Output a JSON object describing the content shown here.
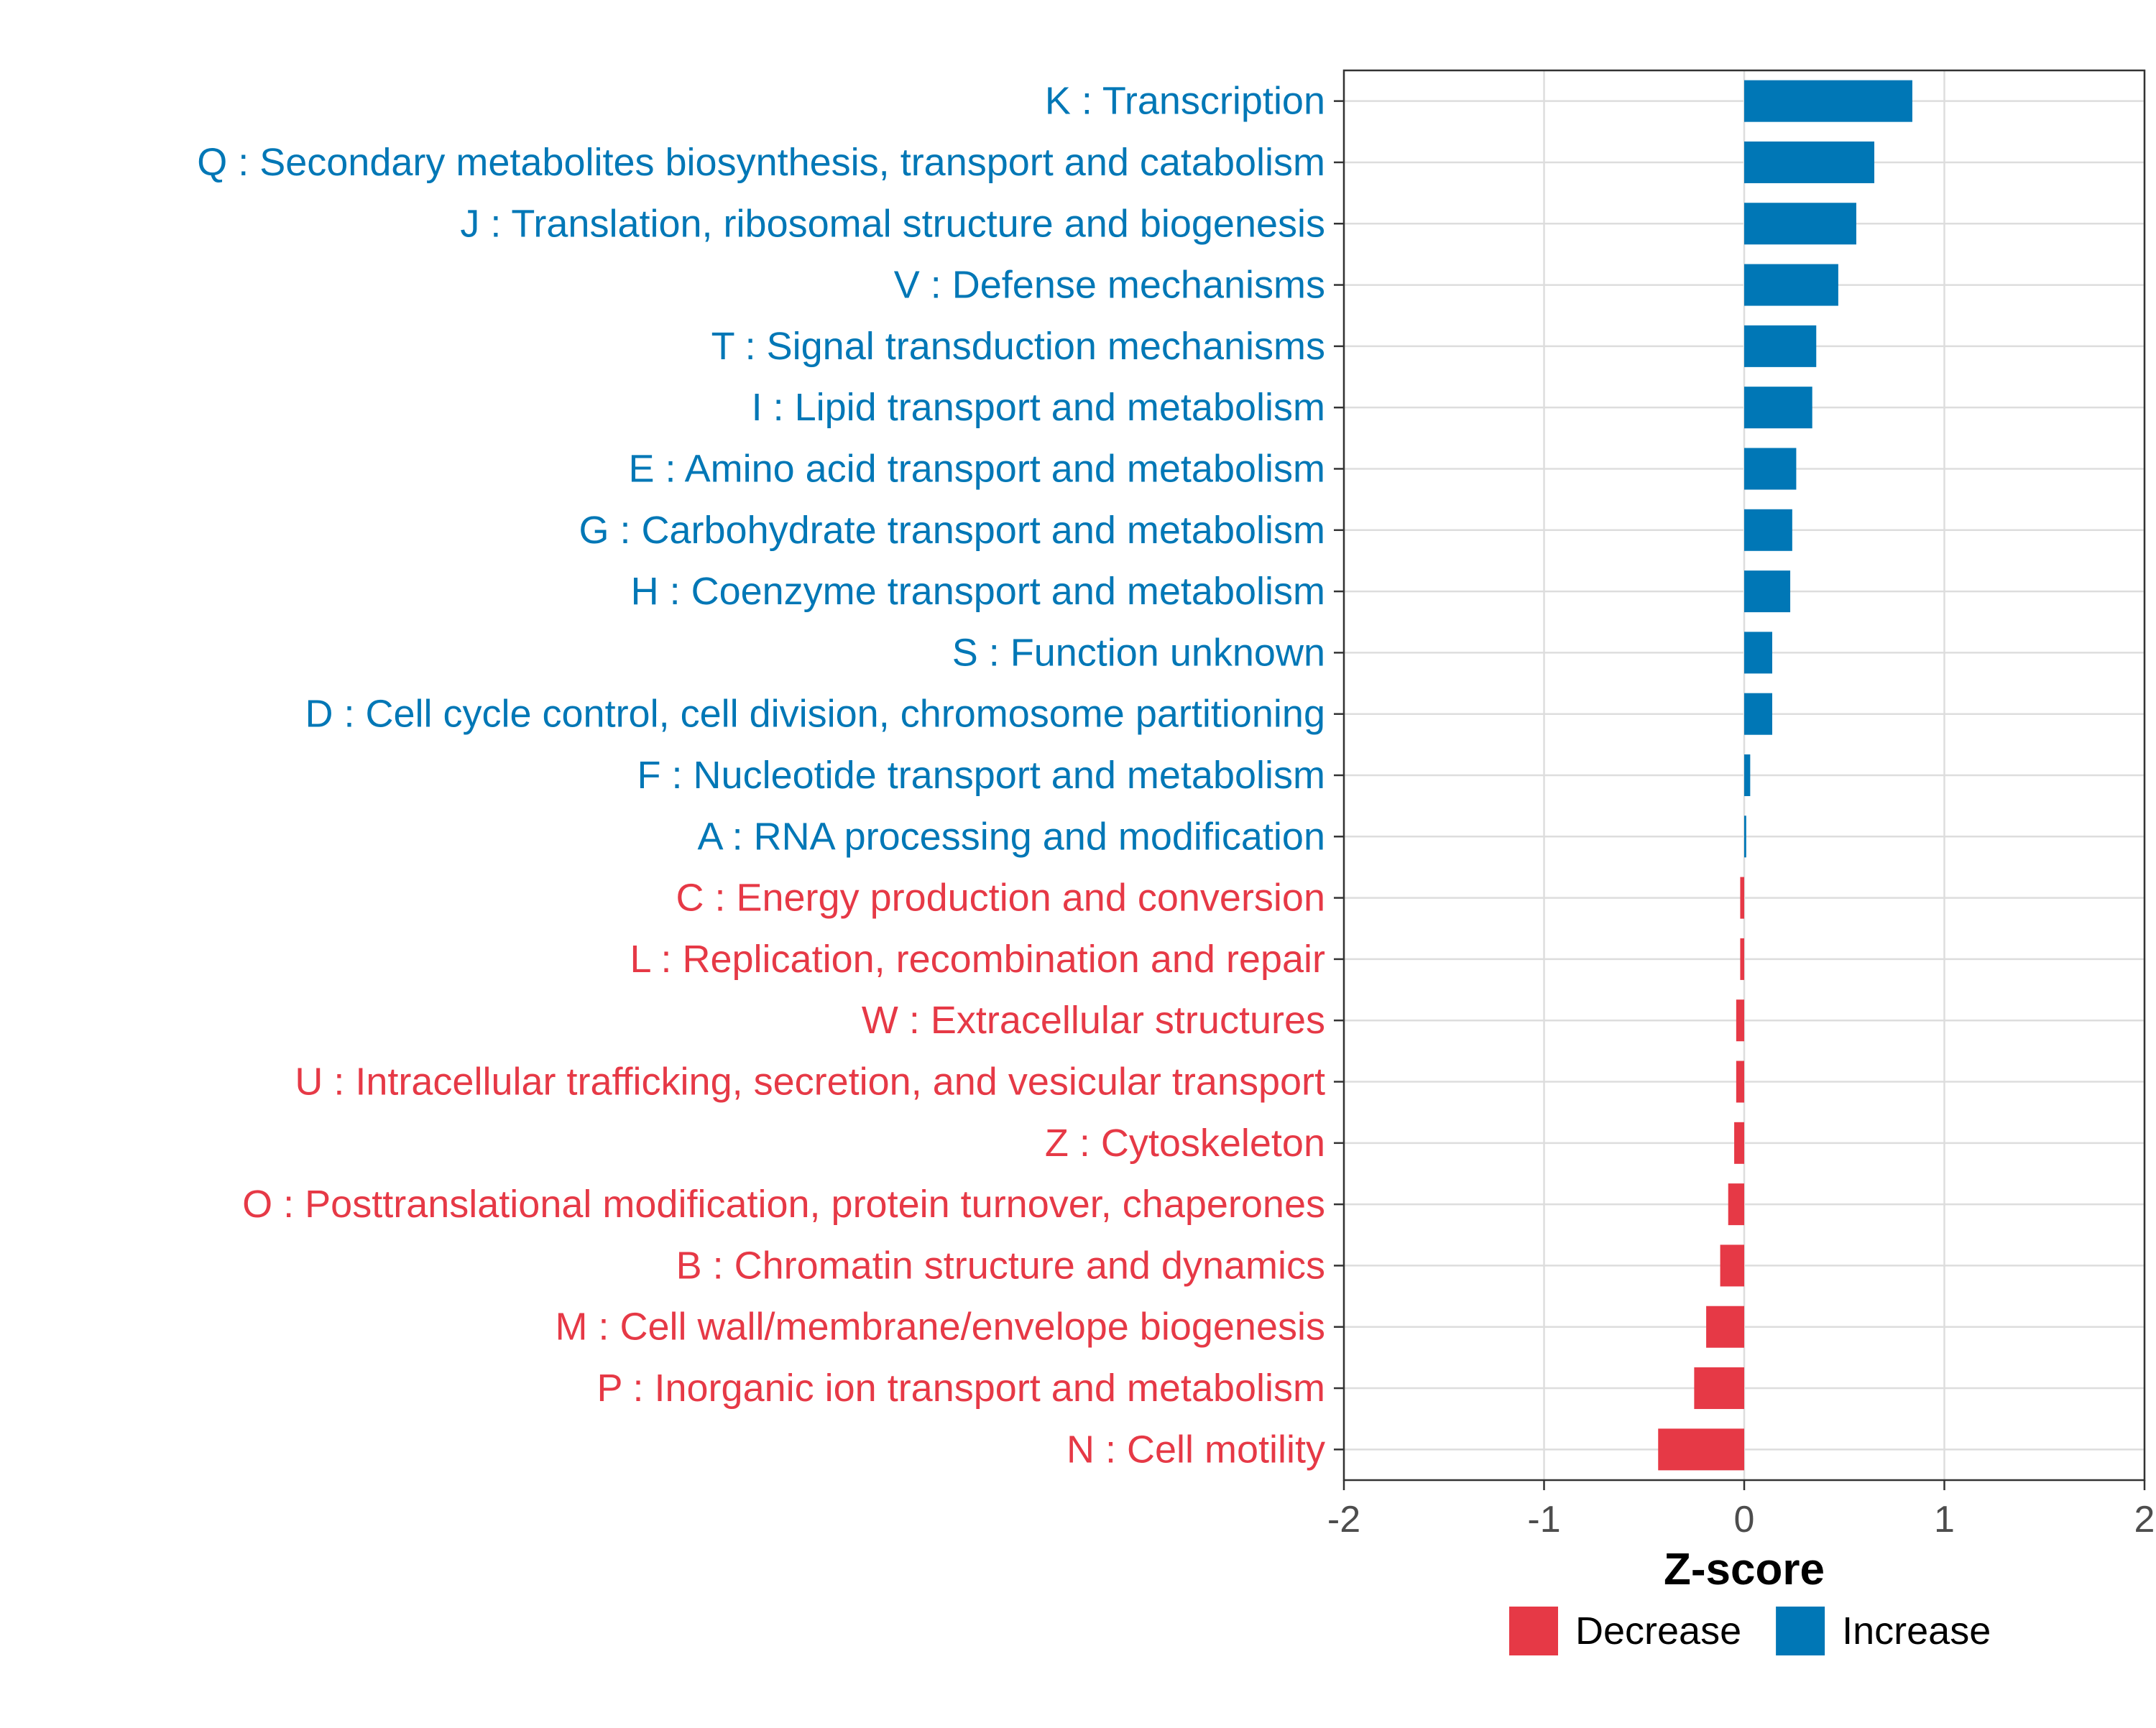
{
  "chart_data": {
    "type": "bar",
    "orientation": "horizontal",
    "xlabel": "Z-score",
    "ylabel": "",
    "xlim": [
      -2,
      2
    ],
    "xticks": [
      -2,
      -1,
      0,
      1,
      2
    ],
    "grid": true,
    "legend_position": "bottom",
    "colors": {
      "Decrease": "#e63946",
      "Increase": "#0077b6"
    },
    "legend": [
      {
        "name": "Decrease",
        "color": "#e63946"
      },
      {
        "name": "Increase",
        "color": "#0077b6"
      }
    ],
    "categories": [
      "K : Transcription",
      "Q : Secondary metabolites biosynthesis, transport and catabolism",
      "J : Translation, ribosomal structure and biogenesis",
      "V : Defense mechanisms",
      "T : Signal transduction mechanisms",
      "I : Lipid transport and metabolism",
      "E : Amino acid transport and metabolism",
      "G : Carbohydrate transport and metabolism",
      "H : Coenzyme transport and metabolism",
      "S : Function unknown",
      "D : Cell cycle control, cell division, chromosome partitioning",
      "F : Nucleotide transport and metabolism",
      "A : RNA processing and modification",
      "C : Energy production and conversion",
      "L : Replication, recombination and repair",
      "W : Extracellular structures",
      "U : Intracellular trafficking, secretion, and vesicular transport",
      "Z : Cytoskeleton",
      "O : Posttranslational modification, protein turnover, chaperones",
      "B : Chromatin structure and dynamics",
      "M : Cell wall/membrane/envelope biogenesis",
      "P : Inorganic ion transport and metabolism",
      "N : Cell motility"
    ],
    "values": [
      0.84,
      0.65,
      0.56,
      0.47,
      0.36,
      0.34,
      0.26,
      0.24,
      0.23,
      0.14,
      0.14,
      0.03,
      0.01,
      -0.02,
      -0.02,
      -0.04,
      -0.04,
      -0.05,
      -0.08,
      -0.12,
      -0.19,
      -0.25,
      -0.43
    ],
    "groups": [
      "Increase",
      "Increase",
      "Increase",
      "Increase",
      "Increase",
      "Increase",
      "Increase",
      "Increase",
      "Increase",
      "Increase",
      "Increase",
      "Increase",
      "Increase",
      "Decrease",
      "Decrease",
      "Decrease",
      "Decrease",
      "Decrease",
      "Decrease",
      "Decrease",
      "Decrease",
      "Decrease",
      "Decrease"
    ]
  }
}
